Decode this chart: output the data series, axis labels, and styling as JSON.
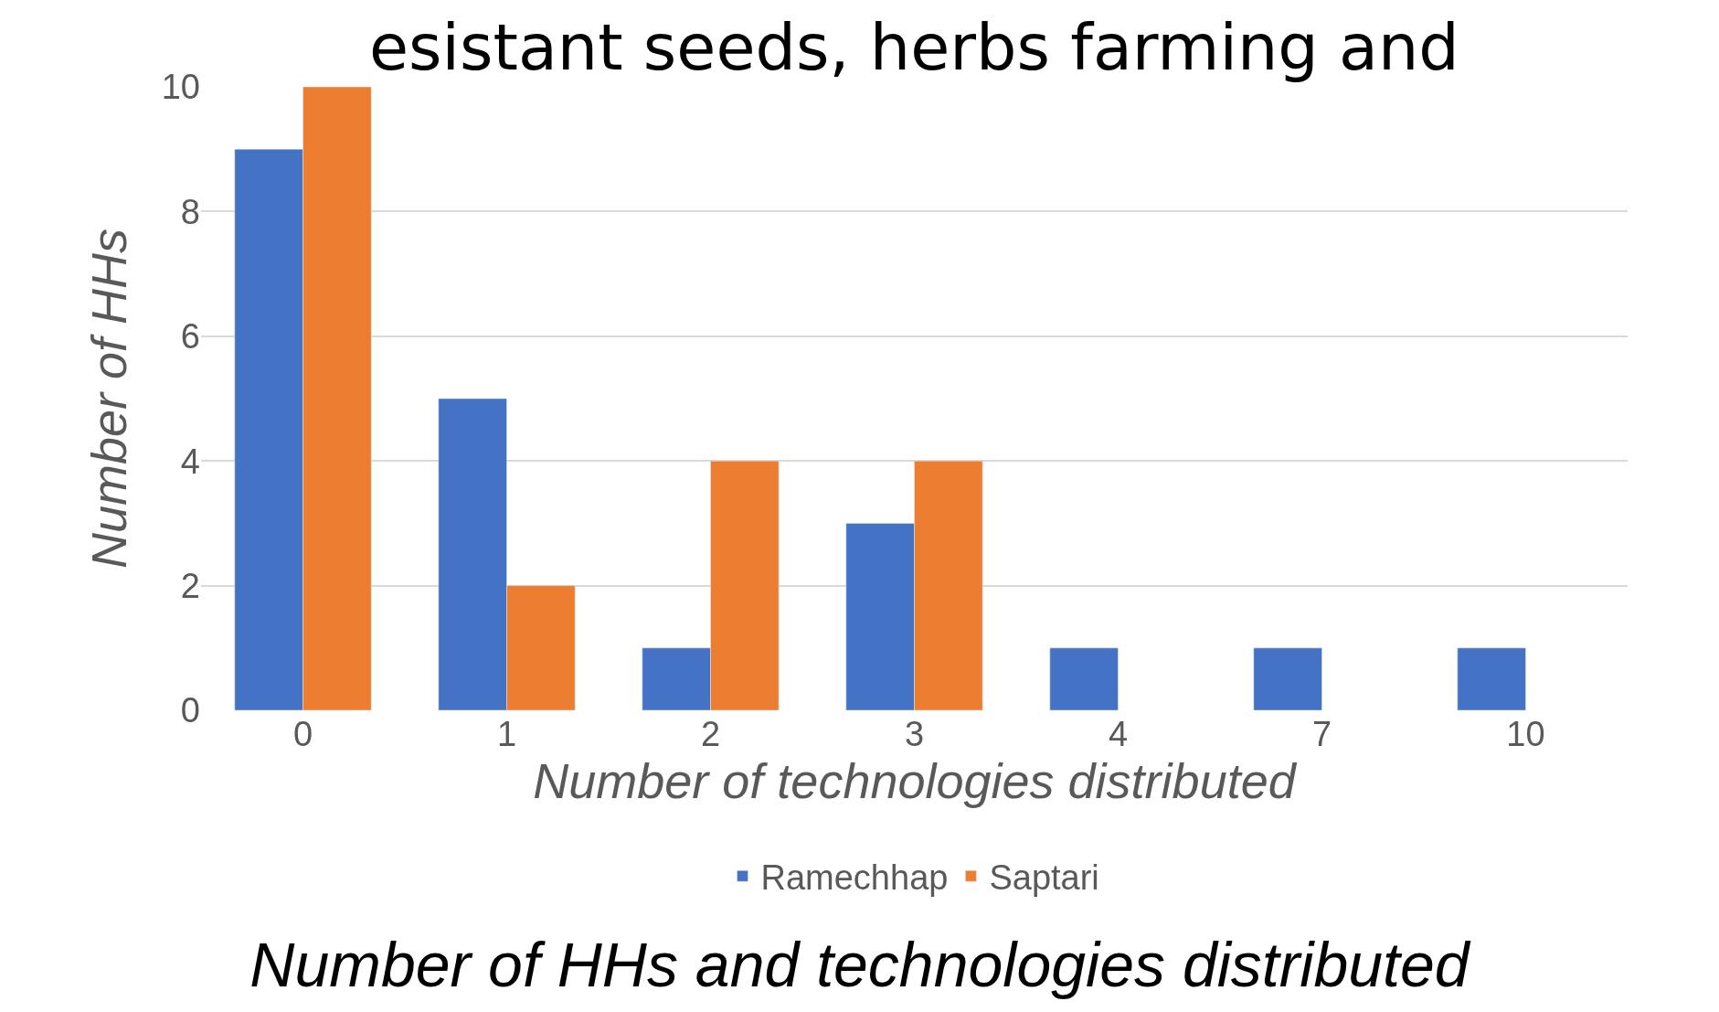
{
  "chart_data": {
    "type": "bar",
    "title": "Number of HHs and technologies distributed",
    "annotations": [
      "esistant seeds, herbs farming and"
    ],
    "xlabel": "Number of technologies distributed",
    "ylabel": "Number of HHs",
    "categories": [
      "0",
      "1",
      "2",
      "3",
      "4",
      "7",
      "10"
    ],
    "series": [
      {
        "name": "Ramechhap",
        "color": "#4472c4",
        "values": [
          9,
          5,
          1,
          3,
          1,
          1,
          1
        ]
      },
      {
        "name": "Saptari",
        "color": "#ed7d31",
        "values": [
          10,
          2,
          4,
          4,
          null,
          null,
          null
        ]
      }
    ],
    "ylim": [
      0,
      10
    ],
    "yticks": [
      0,
      2,
      4,
      6,
      8,
      10
    ],
    "grid": "y",
    "legend": "bottom"
  }
}
